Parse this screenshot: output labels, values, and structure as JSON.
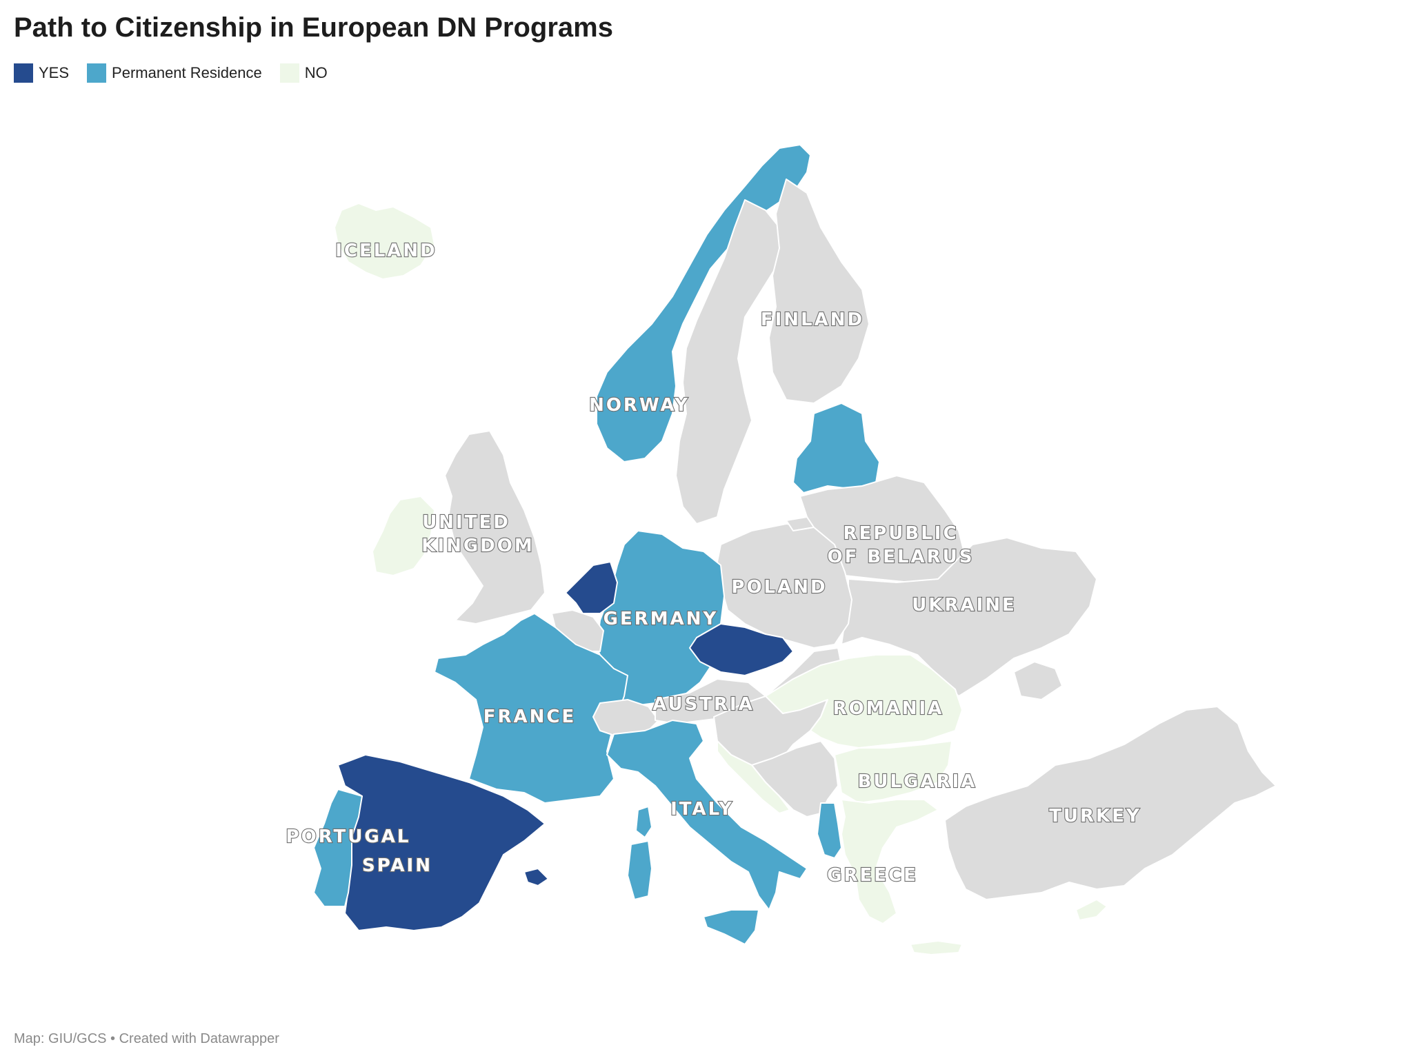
{
  "title": "Path to Citizenship in European DN Programs",
  "legend": [
    {
      "label": "YES",
      "color": "#254b8e"
    },
    {
      "label": "Permanent Residence",
      "color": "#4da7cb"
    },
    {
      "label": "NO",
      "color": "#eef7e8"
    }
  ],
  "other_color": "#dcdcdc",
  "countries": {
    "iceland": "NO",
    "ireland": "NO",
    "uk": "",
    "norway": "Permanent Residence",
    "sweden": "",
    "finland": "",
    "baltics": "Permanent Residence",
    "netherlands": "YES",
    "belgium": "",
    "germany": "Permanent Residence",
    "france": "Permanent Residence",
    "spain": "YES",
    "portugal": "Permanent Residence",
    "italy": "Permanent Residence",
    "czechia": "YES",
    "switzerland": "",
    "austria": "",
    "poland": "",
    "belarus": "",
    "ukraine": "",
    "romania": "NO",
    "bulgaria": "NO",
    "greece": "NO",
    "turkey": "",
    "albania": "Permanent Residence",
    "balkans": "",
    "croatia": "NO"
  },
  "labels": {
    "iceland": "ICELAND",
    "finland": "FINLAND",
    "norway": "NORWAY",
    "uk_1": "UNITED",
    "uk_2": "KINGDOM",
    "belarus_1": "REPUBLIC",
    "belarus_2": "OF BELARUS",
    "poland": "POLAND",
    "ukraine": "UKRAINE",
    "germany": "GERMANY",
    "austria": "AUSTRIA",
    "romania": "ROMANIA",
    "france": "FRANCE",
    "bulgaria": "BULGARIA",
    "italy": "ITALY",
    "turkey": "TURKEY",
    "portugal": "PORTUGAL",
    "spain": "SPAIN",
    "greece": "GREECE"
  },
  "footer": "Map: GIU/GCS • Created with Datawrapper"
}
